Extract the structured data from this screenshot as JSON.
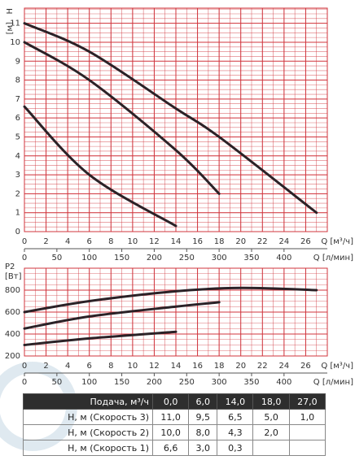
{
  "chart_data": [
    {
      "type": "line",
      "ylabel": [
        "H",
        "[м]"
      ],
      "xlabel": "Q [м³/ч]",
      "x2label": "Q [л/мин]",
      "xlim": [
        0,
        28
      ],
      "xticks": [
        0,
        2,
        4,
        6,
        8,
        10,
        12,
        14,
        16,
        18,
        20,
        22,
        24,
        26
      ],
      "x2lim": [
        0,
        466.7
      ],
      "x2ticks": [
        0,
        50,
        100,
        150,
        200,
        250,
        300,
        350,
        400
      ],
      "ylim": [
        0,
        11.8
      ],
      "yticks": [
        0,
        1,
        2,
        3,
        4,
        5,
        6,
        7,
        8,
        9,
        10,
        11
      ],
      "grid": true,
      "grid_color": "#d0343c",
      "series": [
        {
          "color": "#2b2227",
          "x": [
            0,
            6,
            14,
            18,
            27
          ],
          "values": [
            11,
            9.5,
            6.5,
            5,
            1
          ]
        },
        {
          "color": "#2b2227",
          "x": [
            0,
            6,
            14,
            18
          ],
          "values": [
            10,
            8,
            4.3,
            2
          ]
        },
        {
          "color": "#2b2227",
          "x": [
            0,
            6,
            14
          ],
          "values": [
            6.6,
            3,
            0.3
          ]
        }
      ]
    },
    {
      "type": "line",
      "ylabel": [
        "P2",
        "[Вт]"
      ],
      "xlabel": "Q [м³/ч]",
      "x2label": "Q [л/мин]",
      "xlim": [
        0,
        28
      ],
      "xticks": [
        0,
        2,
        4,
        6,
        8,
        10,
        12,
        14,
        16,
        18,
        20,
        22,
        24,
        26
      ],
      "x2lim": [
        0,
        466.7
      ],
      "x2ticks": [
        0,
        50,
        100,
        150,
        200,
        250,
        300,
        350,
        400
      ],
      "ylim": [
        200,
        1000
      ],
      "yticks": [
        200,
        400,
        600,
        800
      ],
      "grid": true,
      "grid_color": "#d0343c",
      "series": [
        {
          "color": "#2b2227",
          "x": [
            0,
            6,
            14,
            20,
            27
          ],
          "values": [
            600,
            700,
            790,
            820,
            800
          ]
        },
        {
          "color": "#2b2227",
          "x": [
            0,
            6,
            14,
            18
          ],
          "values": [
            450,
            560,
            650,
            690
          ]
        },
        {
          "color": "#2b2227",
          "x": [
            0,
            6,
            14
          ],
          "values": [
            300,
            360,
            420
          ]
        }
      ]
    }
  ],
  "table": {
    "header": [
      "Подача, м³/ч",
      "0,0",
      "6,0",
      "14,0",
      "18,0",
      "27,0"
    ],
    "rows": [
      [
        "H, м (Скорость 3)",
        "11,0",
        "9,5",
        "6,5",
        "5,0",
        "1,0"
      ],
      [
        "H, м (Скорость 2)",
        "10,0",
        "8,0",
        "4,3",
        "2,0",
        null
      ],
      [
        "H, м (Скорость 1)",
        "6,6",
        "3,0",
        "0,3",
        null,
        null
      ]
    ]
  }
}
